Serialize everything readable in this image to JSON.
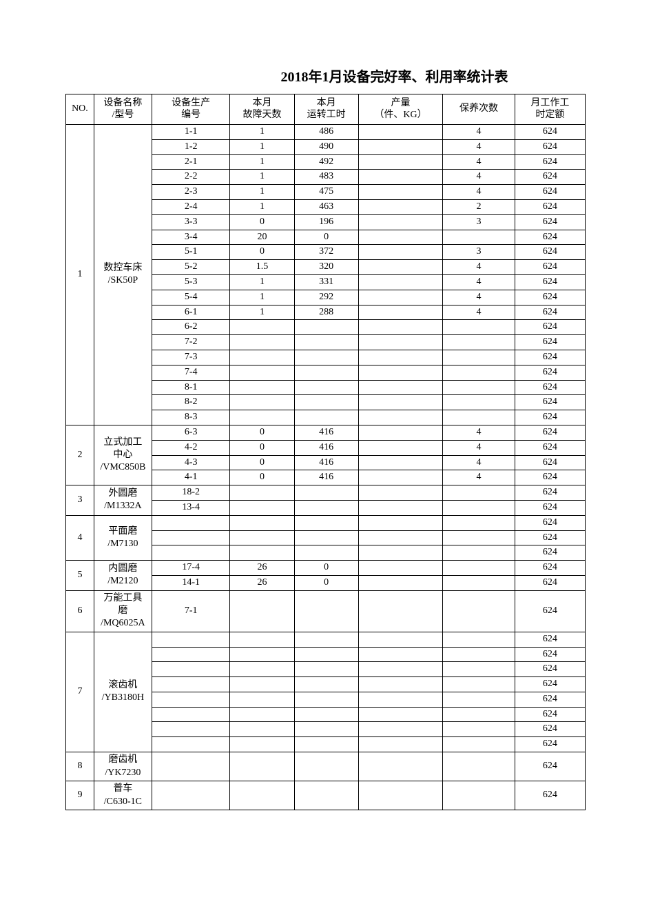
{
  "title": "2018年1月设备完好率、利用率统计表",
  "columns": {
    "no": "NO.",
    "name": "设备名称\n/型号",
    "pn": "设备生产\n编号",
    "fd": "本月\n故障天数",
    "rh": "本月\n运转工时",
    "out": "产量\n（件、KG）",
    "mc": "保养次数",
    "quota": "月工作工\n时定额"
  },
  "groups": [
    {
      "no": "1",
      "name": "数控车床\n/SK50P",
      "rows": [
        {
          "pn": "1-1",
          "fd": "1",
          "rh": "486",
          "out": "",
          "mc": "4",
          "quota": "624"
        },
        {
          "pn": "1-2",
          "fd": "1",
          "rh": "490",
          "out": "",
          "mc": "4",
          "quota": "624"
        },
        {
          "pn": "2-1",
          "fd": "1",
          "rh": "492",
          "out": "",
          "mc": "4",
          "quota": "624"
        },
        {
          "pn": "2-2",
          "fd": "1",
          "rh": "483",
          "out": "",
          "mc": "4",
          "quota": "624"
        },
        {
          "pn": "2-3",
          "fd": "1",
          "rh": "475",
          "out": "",
          "mc": "4",
          "quota": "624"
        },
        {
          "pn": "2-4",
          "fd": "1",
          "rh": "463",
          "out": "",
          "mc": "2",
          "quota": "624"
        },
        {
          "pn": "3-3",
          "fd": "0",
          "rh": "196",
          "out": "",
          "mc": "3",
          "quota": "624"
        },
        {
          "pn": "3-4",
          "fd": "20",
          "rh": "0",
          "out": "",
          "mc": "",
          "quota": "624"
        },
        {
          "pn": "5-1",
          "fd": "0",
          "rh": "372",
          "out": "",
          "mc": "3",
          "quota": "624"
        },
        {
          "pn": "5-2",
          "fd": "1.5",
          "rh": "320",
          "out": "",
          "mc": "4",
          "quota": "624"
        },
        {
          "pn": "5-3",
          "fd": "1",
          "rh": "331",
          "out": "",
          "mc": "4",
          "quota": "624"
        },
        {
          "pn": "5-4",
          "fd": "1",
          "rh": "292",
          "out": "",
          "mc": "4",
          "quota": "624"
        },
        {
          "pn": "6-1",
          "fd": "1",
          "rh": "288",
          "out": "",
          "mc": "4",
          "quota": "624"
        },
        {
          "pn": "6-2",
          "fd": "",
          "rh": "",
          "out": "",
          "mc": "",
          "quota": "624"
        },
        {
          "pn": "7-2",
          "fd": "",
          "rh": "",
          "out": "",
          "mc": "",
          "quota": "624"
        },
        {
          "pn": "7-3",
          "fd": "",
          "rh": "",
          "out": "",
          "mc": "",
          "quota": "624"
        },
        {
          "pn": "7-4",
          "fd": "",
          "rh": "",
          "out": "",
          "mc": "",
          "quota": "624"
        },
        {
          "pn": "8-1",
          "fd": "",
          "rh": "",
          "out": "",
          "mc": "",
          "quota": "624"
        },
        {
          "pn": "8-2",
          "fd": "",
          "rh": "",
          "out": "",
          "mc": "",
          "quota": "624"
        },
        {
          "pn": "8-3",
          "fd": "",
          "rh": "",
          "out": "",
          "mc": "",
          "quota": "624"
        }
      ]
    },
    {
      "no": "2",
      "name": "立式加工\n中心\n/VMC850B",
      "rows": [
        {
          "pn": "6-3",
          "fd": "0",
          "rh": "416",
          "out": "",
          "mc": "4",
          "quota": "624"
        },
        {
          "pn": "4-2",
          "fd": "0",
          "rh": "416",
          "out": "",
          "mc": "4",
          "quota": "624"
        },
        {
          "pn": "4-3",
          "fd": "0",
          "rh": "416",
          "out": "",
          "mc": "4",
          "quota": "624"
        },
        {
          "pn": "4-1",
          "fd": "0",
          "rh": "416",
          "out": "",
          "mc": "4",
          "quota": "624"
        }
      ]
    },
    {
      "no": "3",
      "name": "外圆磨\n/M1332A",
      "rows": [
        {
          "pn": "18-2",
          "fd": "",
          "rh": "",
          "out": "",
          "mc": "",
          "quota": "624"
        },
        {
          "pn": "13-4",
          "fd": "",
          "rh": "",
          "out": "",
          "mc": "",
          "quota": "624"
        }
      ]
    },
    {
      "no": "4",
      "name": "平面磨\n/M7130",
      "rows": [
        {
          "pn": "",
          "fd": "",
          "rh": "",
          "out": "",
          "mc": "",
          "quota": "624"
        },
        {
          "pn": "",
          "fd": "",
          "rh": "",
          "out": "",
          "mc": "",
          "quota": "624"
        },
        {
          "pn": "",
          "fd": "",
          "rh": "",
          "out": "",
          "mc": "",
          "quota": "624"
        }
      ]
    },
    {
      "no": "5",
      "name": "内圆磨\n/M2120",
      "rows": [
        {
          "pn": "17-4",
          "fd": "26",
          "rh": "0",
          "out": "",
          "mc": "",
          "quota": "624"
        },
        {
          "pn": "14-1",
          "fd": "26",
          "rh": "0",
          "out": "",
          "mc": "",
          "quota": "624"
        }
      ]
    },
    {
      "no": "6",
      "name": "万能工具\n磨\n/MQ6025A",
      "rows": [
        {
          "pn": "7-1",
          "fd": "",
          "rh": "",
          "out": "",
          "mc": "",
          "quota": "624",
          "tall": true
        }
      ]
    },
    {
      "no": "7",
      "name": "滚齿机\n/YB3180H",
      "rows": [
        {
          "pn": "",
          "fd": "",
          "rh": "",
          "out": "",
          "mc": "",
          "quota": "624"
        },
        {
          "pn": "",
          "fd": "",
          "rh": "",
          "out": "",
          "mc": "",
          "quota": "624"
        },
        {
          "pn": "",
          "fd": "",
          "rh": "",
          "out": "",
          "mc": "",
          "quota": "624"
        },
        {
          "pn": "",
          "fd": "",
          "rh": "",
          "out": "",
          "mc": "",
          "quota": "624"
        },
        {
          "pn": "",
          "fd": "",
          "rh": "",
          "out": "",
          "mc": "",
          "quota": "624"
        },
        {
          "pn": "",
          "fd": "",
          "rh": "",
          "out": "",
          "mc": "",
          "quota": "624"
        },
        {
          "pn": "",
          "fd": "",
          "rh": "",
          "out": "",
          "mc": "",
          "quota": "624"
        },
        {
          "pn": "",
          "fd": "",
          "rh": "",
          "out": "",
          "mc": "",
          "quota": "624"
        }
      ]
    },
    {
      "no": "8",
      "name": "磨齿机\n/YK7230",
      "rows": [
        {
          "pn": "",
          "fd": "",
          "rh": "",
          "out": "",
          "mc": "",
          "quota": "624",
          "tall2": true
        }
      ]
    },
    {
      "no": "9",
      "name": "普车\n/C630-1C",
      "rows": [
        {
          "pn": "",
          "fd": "",
          "rh": "",
          "out": "",
          "mc": "",
          "quota": "624",
          "tall2": true
        }
      ]
    }
  ]
}
